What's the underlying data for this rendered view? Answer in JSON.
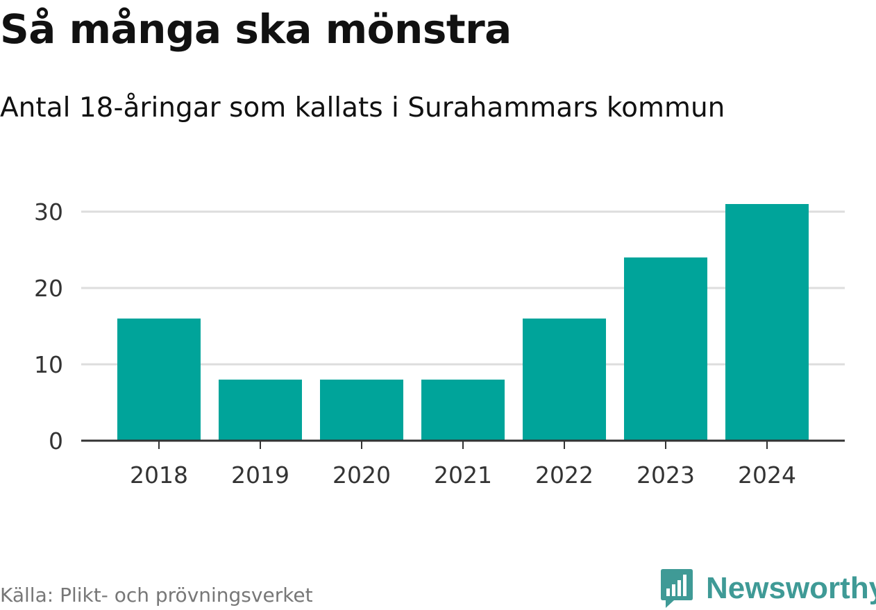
{
  "header": {
    "title": "Så många ska mönstra",
    "subtitle": "Antal 18-åringar som kallats i Surahammars kommun"
  },
  "footer": {
    "source": "Källa: Plikt- och prövningsverket",
    "brand": "Newsworthy",
    "brand_icon": "bar-chart-speech-bubble-icon"
  },
  "colors": {
    "bar": "#00a49a",
    "grid": "#dddddd",
    "axis": "#333333",
    "brand": "#3f9a96"
  },
  "chart_data": {
    "type": "bar",
    "categories": [
      "2018",
      "2019",
      "2020",
      "2021",
      "2022",
      "2023",
      "2024"
    ],
    "values": [
      16,
      8,
      8,
      8,
      16,
      24,
      31
    ],
    "ylim": [
      0,
      30
    ],
    "yticks": [
      0,
      10,
      20,
      30
    ],
    "grid": true,
    "legend": "none"
  }
}
